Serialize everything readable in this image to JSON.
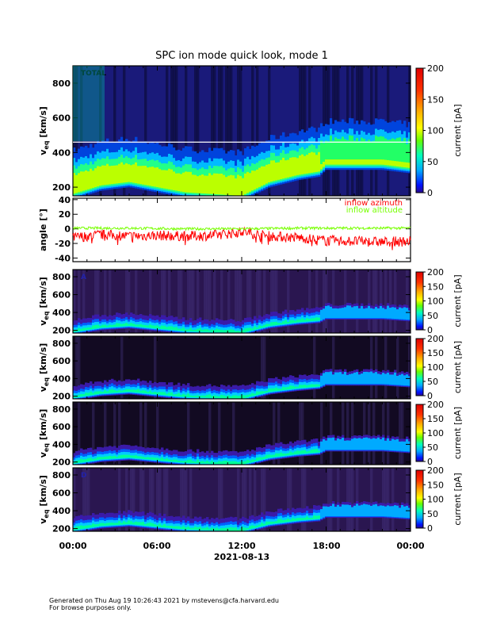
{
  "title": "SPC ion mode quick look, mode 1",
  "footer": {
    "line1": "Generated on Thu Aug 19 10:26:43 2021 by mstevens@cfa.harvard.edu",
    "line2": "For browse purposes only."
  },
  "colors": {
    "azimuth": "#ff0000",
    "altitude": "#77ff00"
  },
  "chart_data": [
    {
      "type": "heatmap",
      "panel": "TOTAL",
      "panel_label": "TOTAL",
      "ylabel": "v_eq [km/s]",
      "ylabel_main": "v",
      "ylabel_sub": "eq",
      "ylabel_units": "[km/s]",
      "ylim": [
        150,
        900
      ],
      "yticks": [
        200,
        400,
        600,
        800
      ],
      "colorbar": {
        "label": "current [pA]",
        "range": [
          0,
          200
        ],
        "ticks": [
          0,
          50,
          100,
          150,
          200
        ]
      },
      "band_time_h": [
        0,
        2,
        4,
        6,
        8,
        10,
        12,
        14,
        16,
        17.5,
        18,
        20,
        22,
        24
      ],
      "band_center_kms": [
        250,
        300,
        320,
        290,
        260,
        250,
        240,
        320,
        360,
        380,
        420,
        420,
        420,
        400
      ]
    },
    {
      "type": "line",
      "panel": "angle",
      "ylabel": "angle [°]",
      "ylim": [
        -45,
        42
      ],
      "yticks": [
        40,
        20,
        0,
        -20,
        -40
      ],
      "series": [
        {
          "name": "inflow azimuth",
          "x_h": [
            0,
            2,
            4,
            6,
            8,
            10,
            12,
            14,
            16,
            18,
            20,
            22,
            24
          ],
          "values": [
            -12,
            -8,
            -10,
            -9,
            -10,
            -9,
            -4,
            -10,
            -12,
            -16,
            -17,
            -18,
            -17
          ]
        },
        {
          "name": "inflow altitude",
          "x_h": [
            0,
            4,
            8,
            12,
            16,
            20,
            24
          ],
          "values": [
            1,
            1,
            0,
            0,
            1,
            1,
            1
          ]
        }
      ]
    },
    {
      "type": "heatmap",
      "panel": "A",
      "panel_label": "A",
      "ylabel": "v_eq [km/s]",
      "ylabel_main": "v",
      "ylabel_sub": "eq",
      "ylabel_units": "[km/s]",
      "ylim": [
        170,
        880
      ],
      "yticks": [
        200,
        400,
        600,
        800
      ],
      "colorbar": {
        "label": "current [pA]",
        "range": [
          0,
          200
        ],
        "ticks": [
          0,
          50,
          100,
          150,
          200
        ]
      }
    },
    {
      "type": "heatmap",
      "panel": "B",
      "ylabel": "v_eq [km/s]",
      "ylabel_main": "v",
      "ylabel_sub": "eq",
      "ylabel_units": "[km/s]",
      "ylim": [
        170,
        880
      ],
      "yticks": [
        200,
        400,
        600,
        800
      ],
      "colorbar": {
        "label": "current [pA]",
        "range": [
          0,
          200
        ],
        "ticks": [
          0,
          50,
          100,
          150,
          200
        ]
      }
    },
    {
      "type": "heatmap",
      "panel": "C",
      "ylabel": "v_eq [km/s]",
      "ylabel_main": "v",
      "ylabel_sub": "eq",
      "ylabel_units": "[km/s]",
      "ylim": [
        170,
        880
      ],
      "yticks": [
        200,
        400,
        600,
        800
      ],
      "colorbar": {
        "label": "current [pA]",
        "range": [
          0,
          200
        ],
        "ticks": [
          0,
          50,
          100,
          150,
          200
        ]
      }
    },
    {
      "type": "heatmap",
      "panel": "D",
      "panel_label": "D",
      "ylabel": "v_eq [km/s]",
      "ylabel_main": "v",
      "ylabel_sub": "eq",
      "ylabel_units": "[km/s]",
      "ylim": [
        170,
        880
      ],
      "yticks": [
        200,
        400,
        600,
        800
      ],
      "colorbar": {
        "label": "current [pA]",
        "range": [
          0,
          200
        ],
        "ticks": [
          0,
          50,
          100,
          150,
          200
        ]
      }
    }
  ],
  "xaxis": {
    "ticks": [
      "00:00",
      "06:00",
      "12:00",
      "18:00",
      "00:00"
    ],
    "tick_hours": [
      0,
      6,
      12,
      18,
      24
    ],
    "date": "2021-08-13"
  }
}
